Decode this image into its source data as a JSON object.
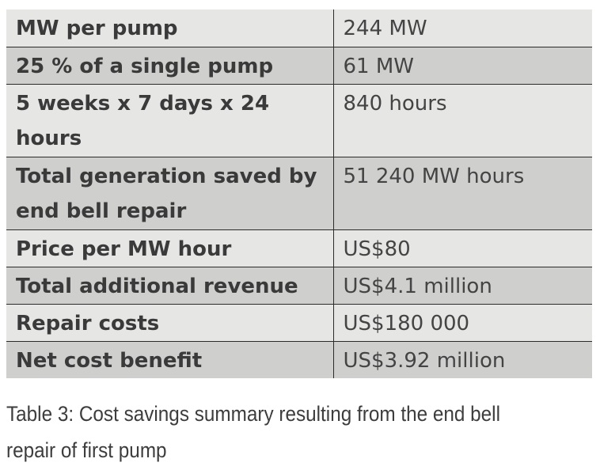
{
  "table": {
    "rows": [
      {
        "label": "MW per pump",
        "value": "244 MW"
      },
      {
        "label": "25 % of a single pump",
        "value": "61 MW"
      },
      {
        "label": "5 weeks x 7 days x 24 hours",
        "value": "840 hours"
      },
      {
        "label": "Total generation saved by end bell repair",
        "value": "51 240 MW hours"
      },
      {
        "label": "Price per MW hour",
        "value": "US$80"
      },
      {
        "label": "Total additional revenue",
        "value": "US$4.1 million"
      },
      {
        "label": "Repair costs",
        "value": "US$180 000"
      },
      {
        "label": "Net cost benefit",
        "value": "US$3.92 million"
      }
    ],
    "row_colors": {
      "light": "#e6e6e5",
      "dark": "#cfcfce"
    }
  },
  "caption": "Table 3: Cost savings summary resulting from the end bell repair of first pump"
}
